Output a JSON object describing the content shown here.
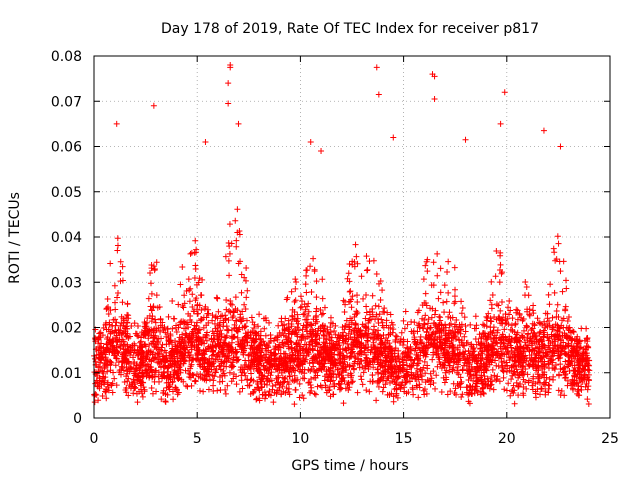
{
  "chart_data": {
    "type": "scatter",
    "title": "Day 178 of 2019, Rate Of TEC Index for receiver p817",
    "xlabel": "GPS time / hours",
    "ylabel": "ROTI / TECUs",
    "xlim": [
      0,
      25
    ],
    "ylim": [
      0,
      0.08
    ],
    "x_ticks": [
      0,
      5,
      10,
      15,
      20,
      25
    ],
    "x_tick_labels": [
      "0",
      "5",
      "10",
      "15",
      "20",
      "25"
    ],
    "y_ticks": [
      0,
      0.01,
      0.02,
      0.03,
      0.04,
      0.05,
      0.06,
      0.07,
      0.08
    ],
    "y_tick_labels": [
      "0",
      "0.01",
      "0.02",
      "0.03",
      "0.04",
      "0.05",
      "0.06",
      "0.07",
      "0.08"
    ],
    "grid": true,
    "marker": "+",
    "color": "#ff0000",
    "data_x_range": [
      0,
      24
    ],
    "approximate_baseline": 0.012,
    "typical_band": [
      0.005,
      0.03
    ],
    "notable_peaks": [
      {
        "x": 1.1,
        "y": 0.065
      },
      {
        "x": 2.9,
        "y": 0.069
      },
      {
        "x": 5.4,
        "y": 0.061
      },
      {
        "x": 6.6,
        "y": 0.078
      },
      {
        "x": 6.6,
        "y": 0.0775
      },
      {
        "x": 6.5,
        "y": 0.074
      },
      {
        "x": 6.5,
        "y": 0.0695
      },
      {
        "x": 7.0,
        "y": 0.065
      },
      {
        "x": 10.5,
        "y": 0.061
      },
      {
        "x": 11.0,
        "y": 0.059
      },
      {
        "x": 13.7,
        "y": 0.0775
      },
      {
        "x": 13.8,
        "y": 0.0715
      },
      {
        "x": 14.5,
        "y": 0.062
      },
      {
        "x": 16.4,
        "y": 0.076
      },
      {
        "x": 16.5,
        "y": 0.0755
      },
      {
        "x": 16.5,
        "y": 0.0705
      },
      {
        "x": 18.0,
        "y": 0.0615
      },
      {
        "x": 19.7,
        "y": 0.065
      },
      {
        "x": 19.9,
        "y": 0.072
      },
      {
        "x": 21.8,
        "y": 0.0635
      },
      {
        "x": 22.6,
        "y": 0.06
      }
    ]
  }
}
